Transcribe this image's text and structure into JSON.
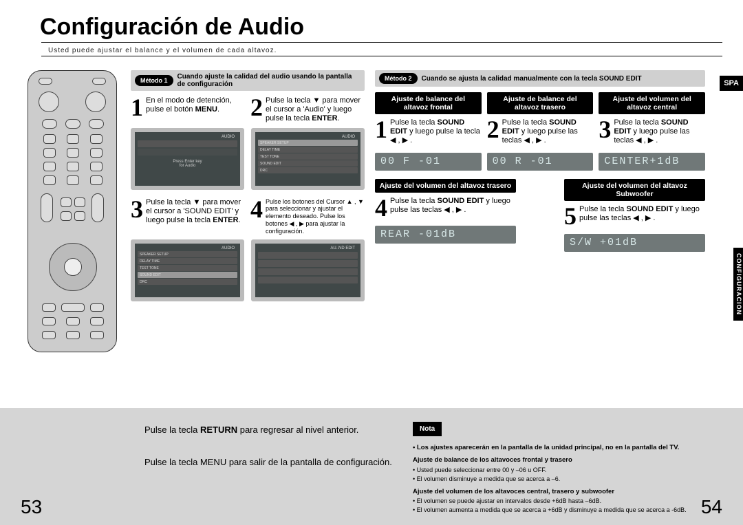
{
  "title": "Configuración de Audio",
  "subtitle": "Usted puede ajustar el balance y el volumen de cada altavoz.",
  "lang_tab": "SPA",
  "side_tab": "CONFIGURACION",
  "method1": {
    "badge": "Método 1",
    "header": "Cuando ajuste la calidad del audio usando la pantalla de configuración",
    "steps": [
      {
        "n": "1",
        "html": "En el modo de detención, pulse el botón <b>MENU</b>."
      },
      {
        "n": "2",
        "html": "Pulse la tecla ▼ para mover el cursor a 'Audio' y luego pulse la tecla <b>ENTER</b>."
      },
      {
        "n": "3",
        "html": "Pulse la tecla ▼ para mover el cursor a 'SOUND EDIT' y luego pulse la tecla <b>ENTER</b>."
      },
      {
        "n": "4",
        "html": "Pulse los botones del Cursor ▲ , ▼ para seleccionar y ajustar el elemento deseado. Pulse los botones ◀ , ▶ para ajustar la configuración."
      }
    ]
  },
  "method2": {
    "badge": "Método 2",
    "header": "Cuando se ajusta la calidad manualmente con la tecla SOUND EDIT",
    "row1": [
      {
        "hdr": "Ajuste de balance del altavoz frontal",
        "n": "1",
        "html": "Pulse la tecla <b>SOUND EDIT</b> y luego pulse la tecla ◀ , ▶ .",
        "readout": "00 F -01"
      },
      {
        "hdr": "Ajuste de balance del altavoz trasero",
        "n": "2",
        "html": "Pulse la tecla <b>SOUND EDIT</b> y luego pulse las teclas ◀ , ▶ .",
        "readout": "00 R -01"
      },
      {
        "hdr": "Ajuste del volumen del altavoz central",
        "n": "3",
        "html": "Pulse la tecla <b>SOUND EDIT</b> y luego pulse las teclas ◀ , ▶ .",
        "readout": "CENTER+1dB"
      }
    ],
    "row2": [
      {
        "hdr": "Ajuste del volumen del altavoz trasero",
        "n": "4",
        "html": "Pulse la tecla <b>SOUND EDIT</b> y luego pulse las teclas ◀ , ▶ .",
        "readout": "REAR -01dB"
      },
      {
        "hdr": "Ajuste del volumen del altavoz Subwoofer",
        "n": "5",
        "html": "Pulse la tecla <b>SOUND EDIT</b> y luego pulse las teclas ◀ , ▶ .",
        "readout": "S/W +01dB"
      }
    ]
  },
  "footer": {
    "left": [
      "Pulse la tecla <b>RETURN</b> para regresar al nivel anterior.",
      "Pulse la tecla MENU para salir de la pantalla de configuración."
    ],
    "nota": "Nota",
    "notes": [
      {
        "head": "• Los ajustes aparecerán en la pantalla de la unidad principal, no en la pantalla del TV.",
        "items": []
      },
      {
        "head": "Ajuste de balance de los altavoces frontal y trasero",
        "items": [
          "• Usted puede seleccionar entre 00 y –06 u OFF.",
          "• El volumen disminuye a medida que se acerca a –6."
        ]
      },
      {
        "head": "Ajuste del volumen de los altavoces central, trasero y subwoofer",
        "items": [
          "• El volumen se puede ajustar en intervalos desde +6dB hasta –6dB.",
          "• El volumen aumenta a medida que se acerca a +6dB y disminuye a medida que se acerca a -6dB."
        ]
      }
    ]
  },
  "page_left": "53",
  "page_right": "54",
  "screen_menu": [
    "SPEAKER SETUP",
    "DELAY TIME",
    "TEST TONE",
    "SOUND EDIT",
    "DRC"
  ]
}
